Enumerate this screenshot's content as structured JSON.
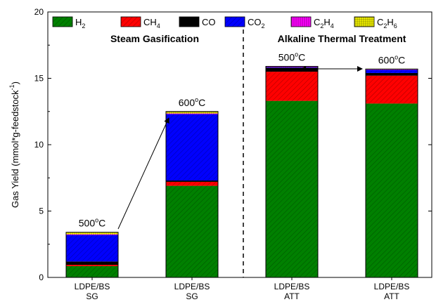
{
  "chart_data": {
    "type": "bar",
    "stacked": true,
    "ylabel": "Gas Yield (mmol*g-feedstock",
    "ylabel_sup": "-1",
    "ylabel_close": ")",
    "ylim": [
      0,
      20
    ],
    "yticks": [
      0,
      5,
      10,
      15,
      20
    ],
    "grid": false,
    "legend_position": "top",
    "categories": [
      {
        "line1": "LDPE/BS",
        "line2": "SG"
      },
      {
        "line1": "LDPE/BS",
        "line2": "SG"
      },
      {
        "line1": "LDPE/BS",
        "line2": "ATT"
      },
      {
        "line1": "LDPE/BS",
        "line2": "ATT"
      }
    ],
    "series": [
      {
        "key": "h2",
        "name": "H",
        "sub": "2",
        "color": "#008000",
        "hatch": "diag",
        "values": [
          0.85,
          6.9,
          13.3,
          13.1
        ]
      },
      {
        "key": "ch4",
        "name": "CH",
        "sub": "4",
        "color": "#ff0000",
        "hatch": "diag",
        "values": [
          0.1,
          0.3,
          2.2,
          2.1
        ]
      },
      {
        "key": "co",
        "name": "CO",
        "sub": "",
        "color": "#000000",
        "hatch": "none",
        "values": [
          0.25,
          0.1,
          0.3,
          0.2
        ]
      },
      {
        "key": "co2",
        "name": "CO",
        "sub": "2",
        "color": "#0000ff",
        "hatch": "diag",
        "values": [
          2.0,
          5.0,
          0.05,
          0.25
        ]
      },
      {
        "key": "c2h4",
        "name": "C",
        "sub": "2",
        "name2": "H",
        "sub2": "4",
        "color": "#ff00ff",
        "hatch": "vert",
        "values": [
          0.05,
          0.05,
          0.02,
          0.02
        ]
      },
      {
        "key": "c2h6",
        "name": "C",
        "sub": "2",
        "name2": "H",
        "sub2": "6",
        "color": "#ffff00",
        "hatch": "grid",
        "values": [
          0.15,
          0.15,
          0.03,
          0.03
        ]
      }
    ],
    "section_titles": [
      "Steam Gasification",
      "Alkaline Thermal Treatment"
    ],
    "temp_labels": [
      {
        "bar": 0,
        "base": "500",
        "sup": "o",
        "unit": "C"
      },
      {
        "bar": 1,
        "base": "600",
        "sup": "o",
        "unit": "C"
      },
      {
        "bar": 2,
        "base": "500",
        "sup": "o",
        "unit": "C"
      },
      {
        "bar": 3,
        "base": "600",
        "sup": "o",
        "unit": "C"
      }
    ]
  }
}
